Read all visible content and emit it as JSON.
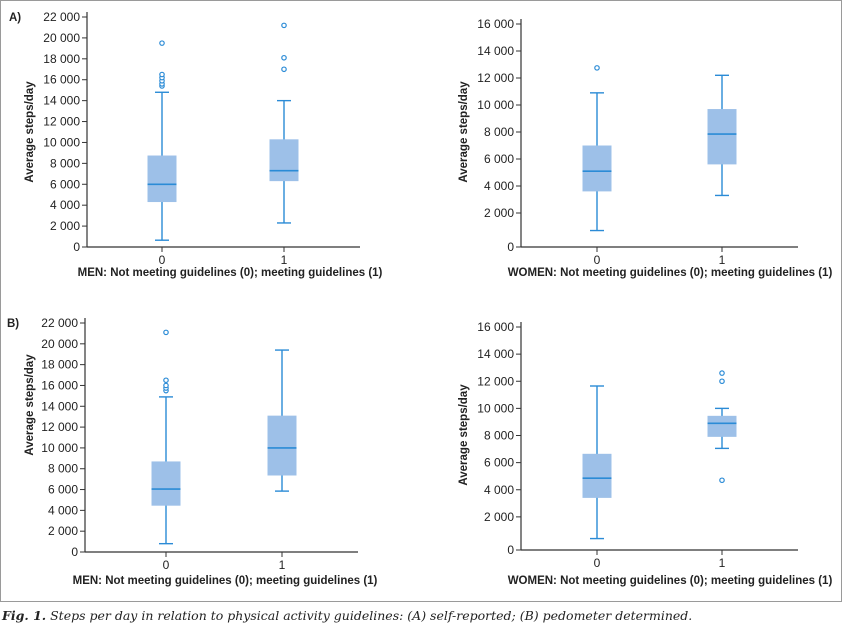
{
  "figure": {
    "caption_label": "Fig. 1.",
    "caption_text": "Steps per day in relation to physical activity guidelines: (A) self-reported; (B) pedometer determined."
  },
  "colors": {
    "box_fill": "#9dc0e8",
    "line": "#2b8bd6",
    "axis": "#333333"
  },
  "chart_data": [
    {
      "type": "boxplot",
      "panel_label": "A)",
      "xlabel": "MEN: Not meeting guidelines (0); meeting guidelines (1)",
      "ylabel": "Average steps/day",
      "ylim": [
        0,
        22000
      ],
      "yticks": [
        0,
        2000,
        4000,
        6000,
        8000,
        10000,
        12000,
        14000,
        16000,
        18000,
        20000,
        22000
      ],
      "ytick_labels": [
        "0",
        "2 000",
        "4 000",
        "6 000",
        "8 000",
        "10 000",
        "12 000",
        "14 000",
        "16 000",
        "18 000",
        "20 000",
        "22 000"
      ],
      "categories": [
        "0",
        "1"
      ],
      "boxes": [
        {
          "min": 650,
          "q1": 4300,
          "median": 6000,
          "q3": 8750,
          "max": 14800,
          "outliers": [
            15400,
            15600,
            15900,
            16200,
            16500,
            19500
          ]
        },
        {
          "min": 2300,
          "q1": 6300,
          "median": 7300,
          "q3": 10300,
          "max": 14000,
          "outliers": [
            17000,
            18100,
            21200
          ]
        }
      ]
    },
    {
      "type": "boxplot",
      "panel_label": "",
      "xlabel": "WOMEN: Not meeting guidelines (0); meeting guidelines (1)",
      "ylabel": "Average steps/day",
      "ylim": [
        0,
        16000
      ],
      "yticks": [
        0,
        2000,
        4000,
        6000,
        8000,
        10000,
        12000,
        14000,
        16000
      ],
      "ytick_labels": [
        "0",
        "2 000",
        "4 000",
        "6 000",
        "8 000",
        "10 000",
        "12 000",
        "14 000",
        "16 000"
      ],
      "categories": [
        "0",
        "1"
      ],
      "boxes": [
        {
          "min": 700,
          "q1": 3600,
          "median": 5100,
          "q3": 7000,
          "max": 10900,
          "outliers": [
            12750
          ]
        },
        {
          "min": 3300,
          "q1": 5600,
          "median": 7850,
          "q3": 9700,
          "max": 12200,
          "outliers": []
        }
      ]
    },
    {
      "type": "boxplot",
      "panel_label": "B)",
      "xlabel": "MEN: Not meeting guidelines (0); meeting guidelines (1)",
      "ylabel": "Average steps/day",
      "ylim": [
        0,
        22000
      ],
      "yticks": [
        0,
        2000,
        4000,
        6000,
        8000,
        10000,
        12000,
        14000,
        16000,
        18000,
        20000,
        22000
      ],
      "ytick_labels": [
        "0",
        "2 000",
        "4 000",
        "6 000",
        "8 000",
        "10 000",
        "12 000",
        "14 000",
        "16 000",
        "18 000",
        "20 000",
        "22 000"
      ],
      "categories": [
        "0",
        "1"
      ],
      "boxes": [
        {
          "min": 800,
          "q1": 4450,
          "median": 6050,
          "q3": 8700,
          "max": 14900,
          "outliers": [
            15500,
            15750,
            16000,
            16500,
            21100
          ]
        },
        {
          "min": 5850,
          "q1": 7350,
          "median": 10000,
          "q3": 13100,
          "max": 19400,
          "outliers": []
        }
      ]
    },
    {
      "type": "boxplot",
      "panel_label": "",
      "xlabel": "WOMEN: Not meeting guidelines (0); meeting guidelines (1)",
      "ylabel": "Average steps/day",
      "ylim": [
        0,
        16000
      ],
      "yticks": [
        0,
        2000,
        4000,
        6000,
        8000,
        10000,
        12000,
        14000,
        16000
      ],
      "ytick_labels": [
        "0",
        "2 000",
        "4 000",
        "6 000",
        "8 000",
        "10 000",
        "12 000",
        "14 000",
        "16 000"
      ],
      "categories": [
        "0",
        "1"
      ],
      "boxes": [
        {
          "min": 400,
          "q1": 3400,
          "median": 4850,
          "q3": 6650,
          "max": 11650,
          "outliers": []
        },
        {
          "min": 7050,
          "q1": 7900,
          "median": 8900,
          "q3": 9450,
          "max": 10000,
          "outliers": [
            4700,
            12000,
            12600
          ]
        }
      ]
    }
  ]
}
